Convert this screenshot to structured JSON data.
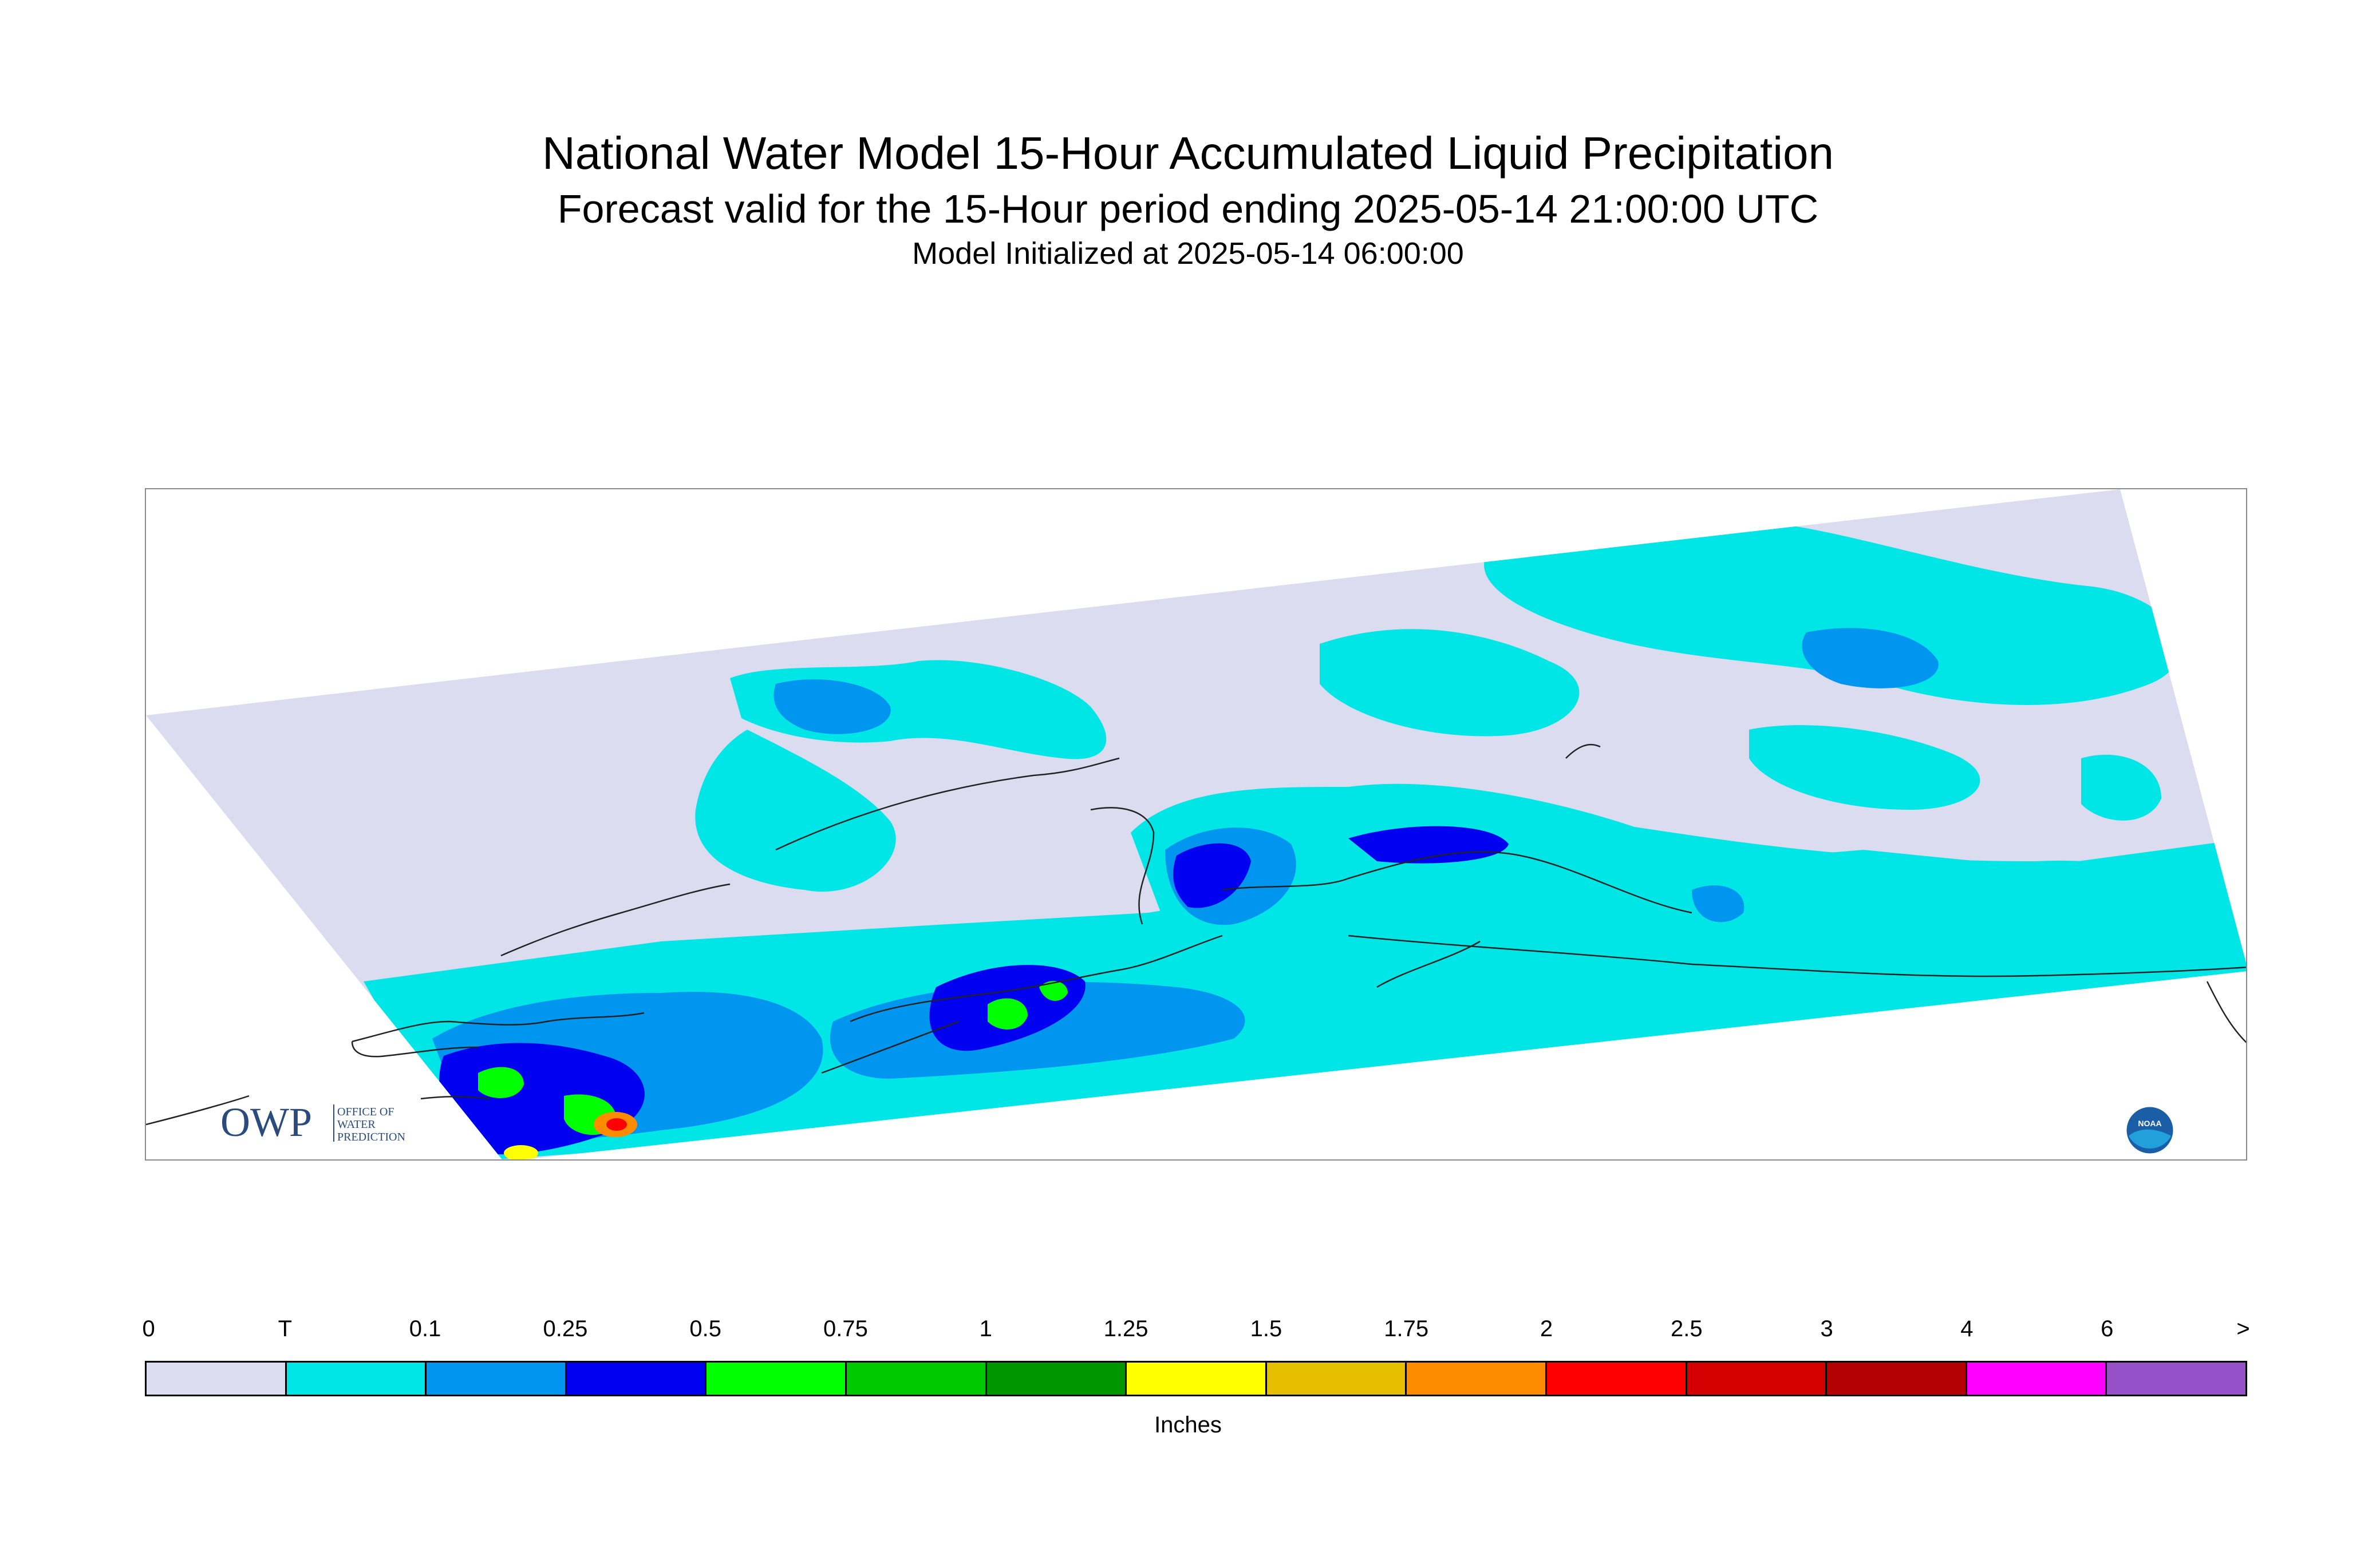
{
  "title": "National Water Model 15-Hour Accumulated Liquid Precipitation",
  "subtitle": "Forecast valid for the 15-Hour period ending 2025-05-14 21:00:00 UTC",
  "initialized": "Model Initialized at 2025-05-14 06:00:00",
  "legend": {
    "tick_labels": [
      "0",
      "T",
      "0.1",
      "0.25",
      "0.5",
      "0.75",
      "1",
      "1.25",
      "1.5",
      "1.75",
      "2",
      "2.5",
      "3",
      "4",
      "6",
      ">"
    ],
    "colors": [
      "#dcdcf0",
      "#00e6e6",
      "#0096f0",
      "#0000f0",
      "#00ff00",
      "#00c800",
      "#009600",
      "#ffff00",
      "#e6be00",
      "#ff8c00",
      "#ff0000",
      "#d20000",
      "#b40000",
      "#ff00ff",
      "#9650c8"
    ],
    "units": "Inches"
  },
  "logos": {
    "owp": {
      "mark": "OWP",
      "line1": "OFFICE OF",
      "line2": "WATER",
      "line3": "PREDICTION"
    },
    "noaa": {
      "mark": "NOAA"
    }
  }
}
